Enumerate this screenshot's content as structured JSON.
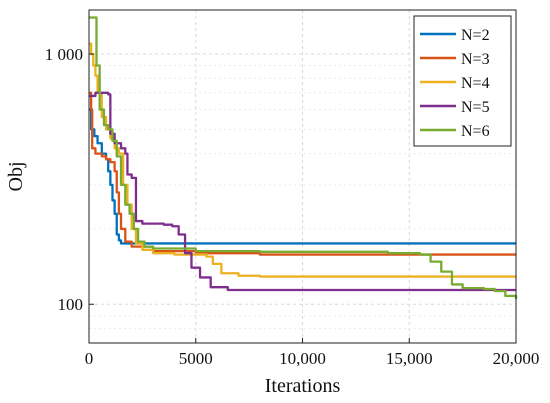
{
  "chart_data": {
    "type": "line",
    "title": "",
    "xlabel": "Iterations",
    "ylabel": "Obj",
    "xlim": [
      0,
      20000
    ],
    "ylim": [
      70,
      1500
    ],
    "yscale": "log",
    "grid": true,
    "legend_position": "top-right",
    "x_ticks": [
      0,
      5000,
      10000,
      15000,
      20000
    ],
    "x_tick_labels": [
      "0",
      "5000",
      "10,000",
      "15,000",
      "20,000"
    ],
    "y_ticks": [
      100,
      1000
    ],
    "y_tick_labels": [
      "100",
      "1 000"
    ],
    "series": [
      {
        "name": "N=2",
        "color": "#0072BD",
        "points": [
          [
            0,
            600
          ],
          [
            100,
            500
          ],
          [
            250,
            470
          ],
          [
            400,
            440
          ],
          [
            600,
            400
          ],
          [
            800,
            380
          ],
          [
            900,
            340
          ],
          [
            1000,
            300
          ],
          [
            1100,
            260
          ],
          [
            1200,
            230
          ],
          [
            1300,
            190
          ],
          [
            1400,
            180
          ],
          [
            1500,
            175
          ],
          [
            1700,
            175
          ],
          [
            20000,
            175
          ]
        ]
      },
      {
        "name": "N=3",
        "color": "#D95319",
        "points": [
          [
            0,
            700
          ],
          [
            100,
            600
          ],
          [
            150,
            420
          ],
          [
            300,
            400
          ],
          [
            600,
            390
          ],
          [
            800,
            380
          ],
          [
            1000,
            370
          ],
          [
            1200,
            340
          ],
          [
            1300,
            280
          ],
          [
            1400,
            230
          ],
          [
            1500,
            200
          ],
          [
            1700,
            178
          ],
          [
            2000,
            170
          ],
          [
            3000,
            163
          ],
          [
            5000,
            160
          ],
          [
            8000,
            158
          ],
          [
            20000,
            158
          ]
        ]
      },
      {
        "name": "N=4",
        "color": "#EDB120",
        "points": [
          [
            0,
            1100
          ],
          [
            100,
            1000
          ],
          [
            200,
            900
          ],
          [
            300,
            820
          ],
          [
            400,
            700
          ],
          [
            600,
            560
          ],
          [
            800,
            500
          ],
          [
            1000,
            460
          ],
          [
            1200,
            420
          ],
          [
            1400,
            400
          ],
          [
            1600,
            300
          ],
          [
            1800,
            250
          ],
          [
            2000,
            200
          ],
          [
            2200,
            175
          ],
          [
            2500,
            165
          ],
          [
            3000,
            160
          ],
          [
            4000,
            158
          ],
          [
            5500,
            155
          ],
          [
            5800,
            145
          ],
          [
            6200,
            133
          ],
          [
            7000,
            130
          ],
          [
            8000,
            129
          ],
          [
            20000,
            129
          ]
        ]
      },
      {
        "name": "N=5",
        "color": "#7E2F8E",
        "points": [
          [
            0,
            680
          ],
          [
            300,
            700
          ],
          [
            800,
            700
          ],
          [
            900,
            690
          ],
          [
            1000,
            480
          ],
          [
            1200,
            440
          ],
          [
            1500,
            420
          ],
          [
            1700,
            400
          ],
          [
            1800,
            330
          ],
          [
            2000,
            320
          ],
          [
            2200,
            215
          ],
          [
            2500,
            210
          ],
          [
            3500,
            208
          ],
          [
            3900,
            205
          ],
          [
            4200,
            190
          ],
          [
            4500,
            160
          ],
          [
            4800,
            140
          ],
          [
            5200,
            128
          ],
          [
            5700,
            117
          ],
          [
            6500,
            114
          ],
          [
            20000,
            114
          ]
        ]
      },
      {
        "name": "N=6",
        "color": "#77AC30",
        "points": [
          [
            0,
            1400
          ],
          [
            300,
            1400
          ],
          [
            350,
            900
          ],
          [
            500,
            600
          ],
          [
            700,
            520
          ],
          [
            900,
            500
          ],
          [
            1100,
            450
          ],
          [
            1300,
            390
          ],
          [
            1500,
            300
          ],
          [
            1700,
            250
          ],
          [
            1900,
            230
          ],
          [
            2100,
            200
          ],
          [
            2300,
            178
          ],
          [
            2600,
            170
          ],
          [
            3000,
            167
          ],
          [
            5000,
            163
          ],
          [
            8000,
            162
          ],
          [
            14000,
            160
          ],
          [
            15500,
            158
          ],
          [
            16000,
            148
          ],
          [
            16500,
            135
          ],
          [
            17000,
            120
          ],
          [
            17500,
            116
          ],
          [
            18500,
            115
          ],
          [
            19000,
            113
          ],
          [
            19500,
            108
          ],
          [
            20000,
            105
          ]
        ]
      }
    ]
  }
}
